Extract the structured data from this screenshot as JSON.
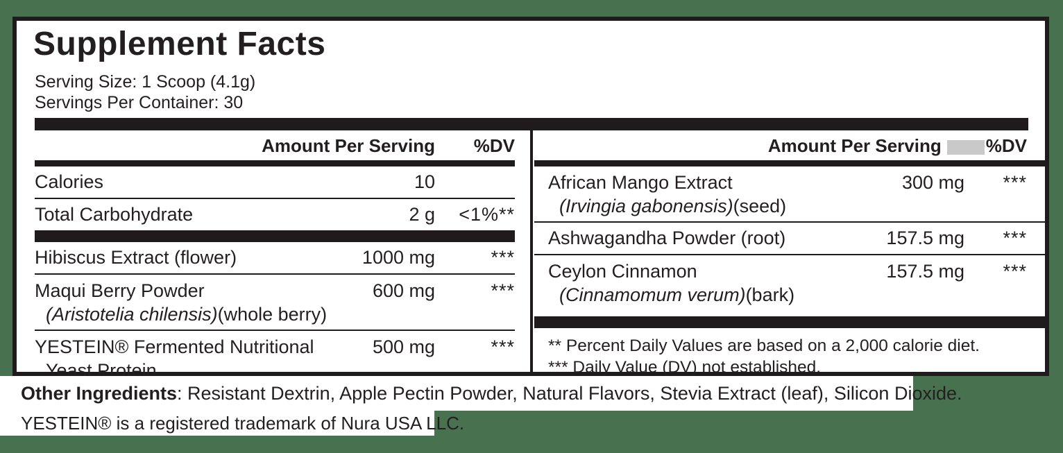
{
  "colors": {
    "background": "#487150",
    "ink": "#231f20",
    "bar": "#1f1b1c",
    "redaction": "#c9c9c9"
  },
  "header": {
    "title": "Supplement Facts",
    "serving_size": "Serving Size: 1 Scoop (4.1g)",
    "servings_per_container": "Servings Per Container: 30"
  },
  "table": {
    "left": {
      "amount_header": "Amount Per Serving",
      "dv_header": "%DV",
      "rows": [
        {
          "name": "Calories",
          "amount": "10",
          "dv": ""
        },
        {
          "name": "Total Carbohydrate",
          "amount": "2 g",
          "dv": "<1%**"
        },
        {
          "name": "Hibiscus Extract (flower)",
          "amount": "1000 mg",
          "dv": "***"
        },
        {
          "name": "Maqui Berry Powder",
          "sub_italic": "(Aristotelia chilensis)",
          "sub_regular": "(whole berry)",
          "amount": "600 mg",
          "dv": "***"
        },
        {
          "name": "YESTEIN® Fermented Nutritional",
          "sub_italic": "",
          "sub_regular": "Yeast Protein",
          "amount": "500 mg",
          "dv": "***"
        }
      ]
    },
    "right": {
      "amount_header": "Amount Per Serving",
      "dv_header": "%DV",
      "rows": [
        {
          "name": "African Mango Extract",
          "sub_italic": "(Irvingia gabonensis)",
          "sub_regular": "(seed)",
          "amount": "300 mg",
          "dv": "***"
        },
        {
          "name": "Ashwagandha Powder (root)",
          "amount": "157.5 mg",
          "dv": "***"
        },
        {
          "name": "Ceylon Cinnamon",
          "sub_italic": "(Cinnamomum verum)",
          "sub_regular": "(bark)",
          "amount": "157.5 mg",
          "dv": "***"
        }
      ]
    }
  },
  "footnotes": {
    "line1": "** Percent Daily Values are based on a 2,000 calorie diet.",
    "line2": "*** Daily Value (DV) not established."
  },
  "bottom": {
    "other_ingredients_label": "Other Ingredients",
    "other_ingredients_text": ": Resistant Dextrin, Apple Pectin Powder, Natural Flavors, Stevia Extract (leaf), Silicon Dioxide.",
    "trademark": "YESTEIN® is a registered trademark of Nura USA LLC."
  }
}
